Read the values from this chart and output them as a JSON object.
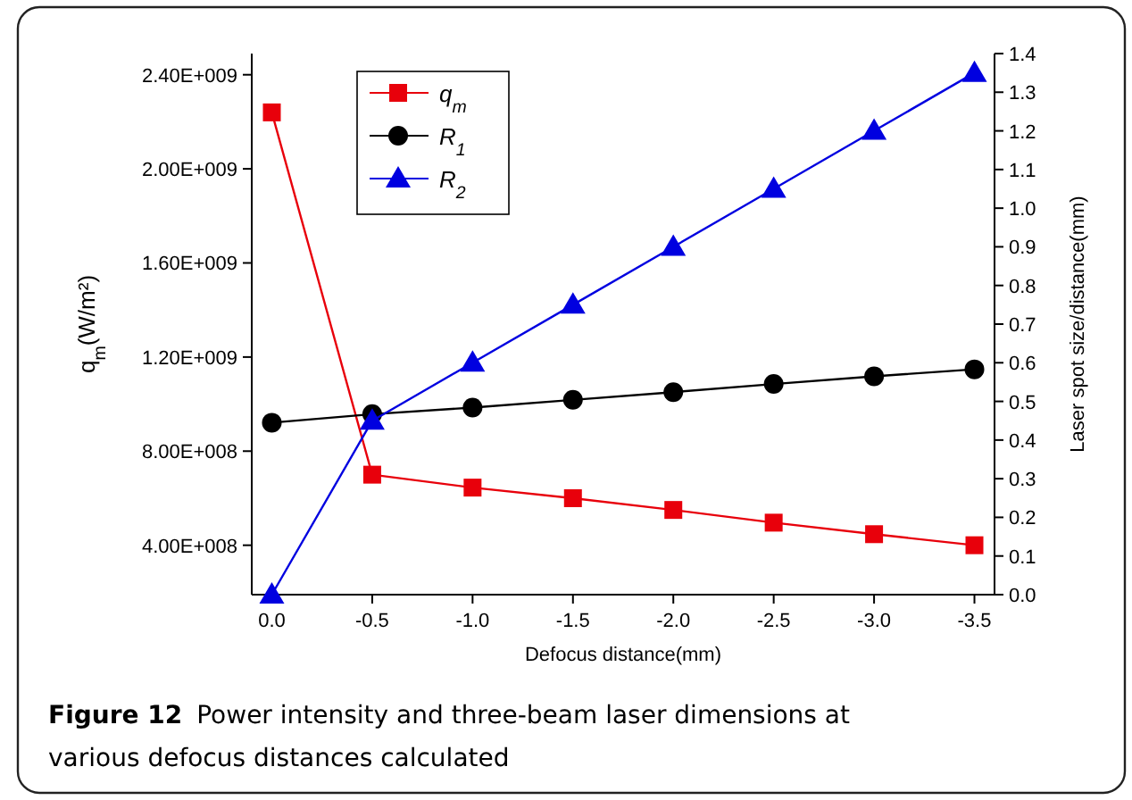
{
  "chart_data": {
    "type": "line",
    "title": "Figure 12",
    "subtitle": "Power intensity and three-beam laser dimensions at various defocus distances calculated",
    "xlabel": "Defocus distance(mm)",
    "ylabel": "q$_{m}$(W/m²)",
    "y2label": "Laser spot size/distance(mm)",
    "x": [
      0,
      -0.5,
      -1.0,
      -1.5,
      -2.0,
      -2.5,
      -3.0,
      -3.5
    ],
    "series": [
      {
        "name": "q$_{m}$",
        "color": "#e8000b",
        "marker": "square",
        "values": [
          2240000000,
          700000000,
          645000000,
          600000000,
          550000000,
          496000000,
          447000000,
          400000000
        ]
      },
      {
        "name": "R$_{1}$",
        "color": "#000000",
        "marker": "circle",
        "axis": "y2",
        "values": [
          0.445,
          0.467,
          0.484,
          0.504,
          0.524,
          0.545,
          0.565,
          0.583
        ]
      },
      {
        "name": "R$_{2}$",
        "color": "#0000e0",
        "marker": "triangle",
        "axis": "y2",
        "values": [
          0,
          0.45,
          0.6,
          0.75,
          0.9,
          1.05,
          1.2,
          1.35
        ]
      }
    ],
    "xlim": [
      0.1,
      -3.6
    ],
    "xticks": [
      {
        "value": 0,
        "label": "0.0"
      },
      -0.5,
      {
        "value": -1,
        "label": "-1.0"
      },
      -1.5,
      {
        "value": -2,
        "label": "-2.0"
      },
      -2.5,
      {
        "value": -3,
        "label": "-3.0"
      },
      -3.5
    ],
    "ylim": [
      190000000,
      2490000000
    ],
    "yticks": [
      {
        "value": 400000000,
        "label": "4.00E+008"
      },
      {
        "value": 800000000,
        "label": "8.00E+008"
      },
      {
        "value": 1200000000,
        "label": "1.20E+009"
      },
      {
        "value": 1600000000,
        "label": "1.60E+009"
      },
      {
        "value": 2000000000,
        "label": "2.00E+009"
      },
      {
        "value": 2400000000,
        "label": "2.40E+009"
      }
    ],
    "y2lim": [
      0,
      1.4
    ],
    "y2ticks": [
      {
        "value": 0,
        "label": "0.0"
      },
      0.1,
      0.2,
      0.3,
      0.4,
      0.5,
      0.6,
      0.7,
      0.8,
      0.9,
      {
        "value": 1,
        "label": "1.0"
      },
      1.1,
      1.2,
      1.3,
      1.4
    ],
    "legend": "top left",
    "grid": false,
    "line_style": "solid"
  }
}
